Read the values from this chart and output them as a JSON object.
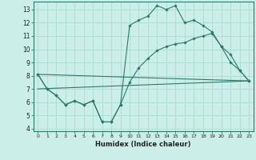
{
  "xlabel": "Humidex (Indice chaleur)",
  "background_color": "#cceee8",
  "grid_color": "#aaddcc",
  "line_color": "#2a7a6e",
  "spine_color": "#2a7a6e",
  "xlim": [
    -0.5,
    23.5
  ],
  "ylim": [
    3.8,
    13.6
  ],
  "xticks": [
    0,
    1,
    2,
    3,
    4,
    5,
    6,
    7,
    8,
    9,
    10,
    11,
    12,
    13,
    14,
    15,
    16,
    17,
    18,
    19,
    20,
    21,
    22,
    23
  ],
  "yticks": [
    4,
    5,
    6,
    7,
    8,
    9,
    10,
    11,
    12,
    13
  ],
  "line1_x": [
    0,
    1,
    2,
    3,
    4,
    5,
    6,
    7,
    8,
    9,
    10,
    11,
    12,
    13,
    14,
    15,
    16,
    17,
    18,
    19,
    20,
    21,
    22,
    23
  ],
  "line1_y": [
    8.1,
    7.0,
    6.5,
    5.8,
    6.1,
    5.8,
    6.1,
    4.5,
    4.5,
    5.8,
    11.8,
    12.2,
    12.5,
    13.3,
    13.0,
    13.3,
    12.0,
    12.2,
    11.8,
    11.3,
    10.2,
    9.6,
    8.4,
    7.6
  ],
  "line2_x": [
    0,
    1,
    2,
    3,
    4,
    5,
    6,
    7,
    8,
    9,
    10,
    11,
    12,
    13,
    14,
    15,
    16,
    17,
    18,
    19,
    20,
    21,
    22,
    23
  ],
  "line2_y": [
    8.1,
    7.0,
    6.5,
    5.8,
    6.1,
    5.8,
    6.1,
    4.5,
    4.5,
    5.8,
    7.5,
    8.6,
    9.3,
    9.9,
    10.2,
    10.4,
    10.5,
    10.8,
    11.0,
    11.2,
    10.2,
    9.0,
    8.4,
    7.6
  ],
  "line3_x": [
    0,
    23
  ],
  "line3_y": [
    8.1,
    7.6
  ],
  "line4_x": [
    0,
    23
  ],
  "line4_y": [
    7.0,
    7.6
  ]
}
